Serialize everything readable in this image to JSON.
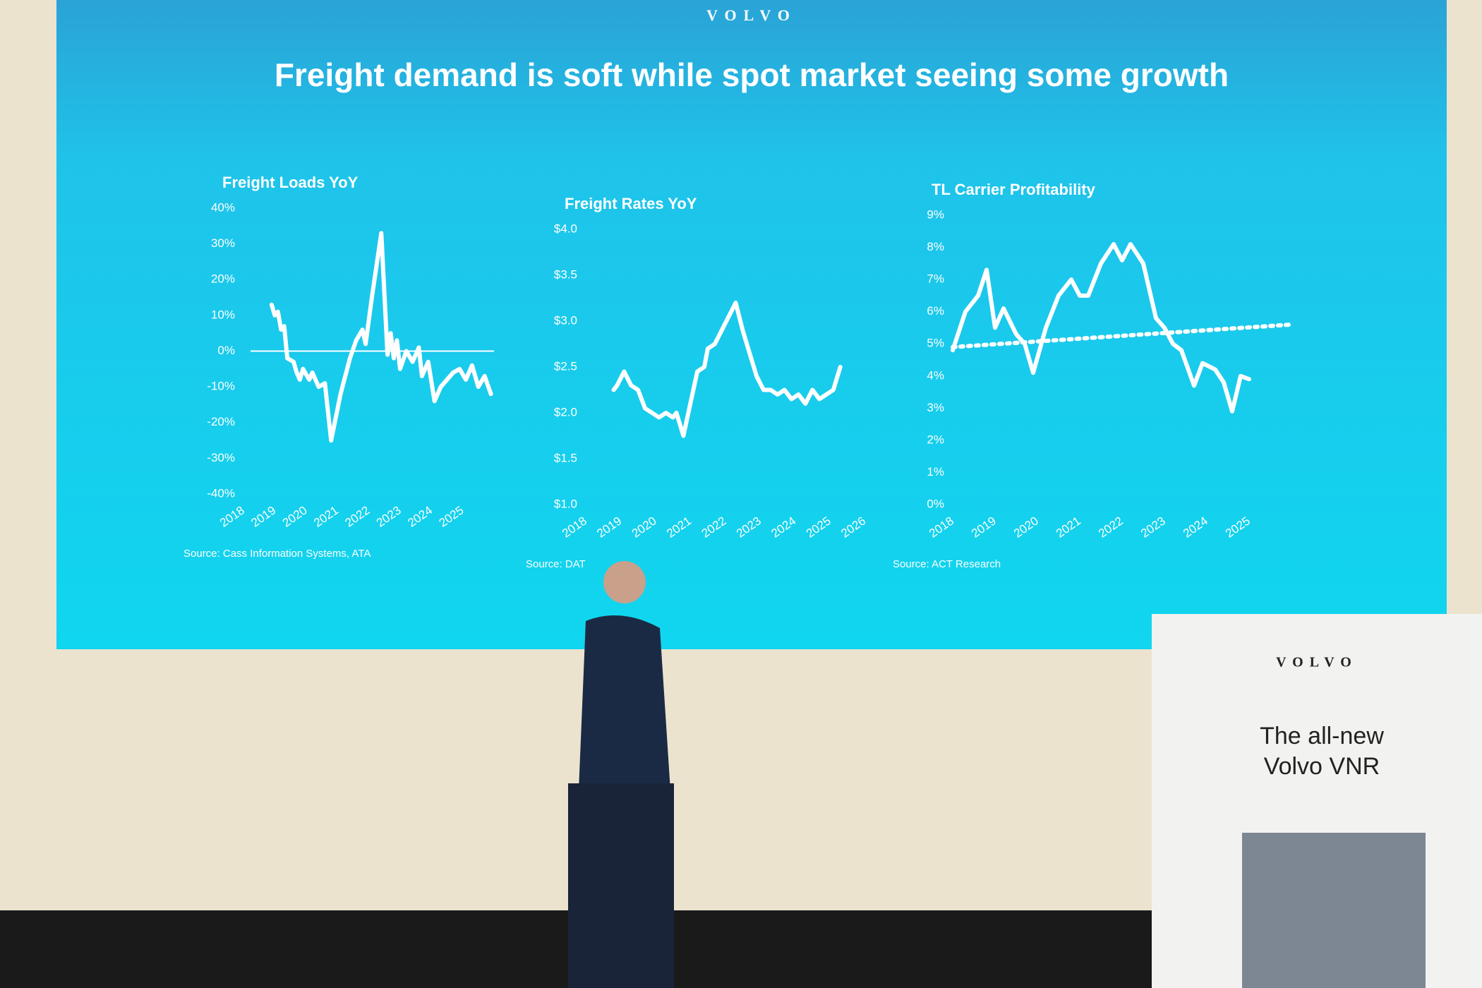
{
  "slide": {
    "brand": "VOLVO",
    "title": "Freight demand is soft while spot market seeing some growth"
  },
  "banner": {
    "brand": "VOLVO",
    "headline": [
      "The all-new",
      "Volvo VNR"
    ]
  },
  "chart_data": [
    {
      "type": "line",
      "title": "Freight Loads YoY",
      "source": "Source: Cass Information Systems, ATA",
      "color": "#ffffff",
      "xlim": [
        2018,
        2026
      ],
      "xticks": [
        2018,
        2019,
        2020,
        2021,
        2022,
        2023,
        2024,
        2025
      ],
      "ylim": [
        -40,
        40
      ],
      "yticks": [
        {
          "value": -40,
          "label": "-40%"
        },
        {
          "value": -30,
          "label": "-30%"
        },
        {
          "value": -20,
          "label": "-20%"
        },
        {
          "value": -10,
          "label": "-10%"
        },
        {
          "value": 0,
          "label": "0%"
        },
        {
          "value": 10,
          "label": "10%"
        },
        {
          "value": 20,
          "label": "20%"
        },
        {
          "value": 30,
          "label": "30%"
        },
        {
          "value": 40,
          "label": "40%"
        }
      ],
      "x": [
        2018.9,
        2019.0,
        2019.1,
        2019.2,
        2019.3,
        2019.4,
        2019.6,
        2019.7,
        2019.8,
        2019.9,
        2020.1,
        2020.2,
        2020.4,
        2020.6,
        2020.8,
        2021.1,
        2021.4,
        2021.6,
        2021.8,
        2021.9,
        2022.1,
        2022.4,
        2022.6,
        2022.7,
        2022.8,
        2022.9,
        2023.0,
        2023.2,
        2023.4,
        2023.6,
        2023.7,
        2023.9,
        2024.1,
        2024.3,
        2024.5,
        2024.7,
        2024.9,
        2025.1,
        2025.3,
        2025.5,
        2025.7,
        2025.9
      ],
      "series": [
        {
          "color": "#ffffff",
          "values": [
            13,
            10,
            11,
            6,
            7,
            -2,
            -3,
            -6,
            -8,
            -5,
            -8,
            -6,
            -10,
            -9,
            -25,
            -12,
            -2,
            3,
            6,
            2,
            15,
            33,
            -1,
            5,
            -2,
            3,
            -5,
            0,
            -3,
            1,
            -7,
            -3,
            -14,
            -10,
            -8,
            -6,
            -5,
            -8,
            -4,
            -10,
            -7,
            -12
          ]
        }
      ]
    },
    {
      "type": "line",
      "title": "Freight Rates YoY",
      "source": "Source: DAT",
      "color": "#ffffff",
      "xlim": [
        2018,
        2026.5
      ],
      "xticks": [
        2018,
        2019,
        2020,
        2021,
        2022,
        2023,
        2024,
        2025,
        2026
      ],
      "ylim": [
        1.0,
        4.0
      ],
      "yticks": [
        {
          "value": 1.0,
          "label": "$1.0"
        },
        {
          "value": 1.5,
          "label": "$1.5"
        },
        {
          "value": 2.0,
          "label": "$2.0"
        },
        {
          "value": 2.5,
          "label": "$2.5"
        },
        {
          "value": 3.0,
          "label": "$3.0"
        },
        {
          "value": 3.5,
          "label": "$3.5"
        },
        {
          "value": 4.0,
          "label": "$4.0"
        }
      ],
      "x": [
        2018.8,
        2018.9,
        2019.1,
        2019.3,
        2019.5,
        2019.7,
        2019.9,
        2020.1,
        2020.3,
        2020.5,
        2020.6,
        2020.8,
        2021.0,
        2021.2,
        2021.4,
        2021.5,
        2021.7,
        2021.9,
        2022.1,
        2022.3,
        2022.5,
        2022.7,
        2022.9,
        2023.1,
        2023.3,
        2023.5,
        2023.7,
        2023.9,
        2024.1,
        2024.3,
        2024.5,
        2024.7,
        2024.9,
        2025.1,
        2025.3
      ],
      "series": [
        {
          "color": "#ffffff",
          "values": [
            2.25,
            2.3,
            2.45,
            2.3,
            2.25,
            2.05,
            2.0,
            1.95,
            2.0,
            1.95,
            2.0,
            1.75,
            2.1,
            2.45,
            2.5,
            2.7,
            2.75,
            2.9,
            3.05,
            3.2,
            2.9,
            2.65,
            2.4,
            2.25,
            2.25,
            2.2,
            2.25,
            2.15,
            2.2,
            2.1,
            2.25,
            2.15,
            2.2,
            2.25,
            2.5
          ]
        }
      ]
    },
    {
      "type": "line",
      "title": "TL Carrier Profitability",
      "source": "Source: ACT Research",
      "color": "#ffffff",
      "xlim": [
        2018,
        2026
      ],
      "xticks": [
        2018,
        2019,
        2020,
        2021,
        2022,
        2023,
        2024,
        2025
      ],
      "ylim": [
        0,
        9
      ],
      "yticks": [
        {
          "value": 0,
          "label": "0%"
        },
        {
          "value": 1,
          "label": "1%"
        },
        {
          "value": 2,
          "label": "2%"
        },
        {
          "value": 3,
          "label": "3%"
        },
        {
          "value": 4,
          "label": "4%"
        },
        {
          "value": 5,
          "label": "5%"
        },
        {
          "value": 6,
          "label": "6%"
        },
        {
          "value": 7,
          "label": "7%"
        },
        {
          "value": 8,
          "label": "8%"
        },
        {
          "value": 9,
          "label": "9%"
        }
      ],
      "series": [
        {
          "color": "#ffffff",
          "dashed": false,
          "x": [
            2018.0,
            2018.3,
            2018.6,
            2018.8,
            2019.0,
            2019.2,
            2019.5,
            2019.7,
            2019.9,
            2020.2,
            2020.5,
            2020.8,
            2021.0,
            2021.2,
            2021.5,
            2021.8,
            2022.0,
            2022.2,
            2022.5,
            2022.8,
            2023.0,
            2023.2,
            2023.4,
            2023.7,
            2023.9,
            2024.2,
            2024.4,
            2024.6,
            2024.8,
            2025.0
          ],
          "values": [
            4.8,
            6.0,
            6.5,
            7.3,
            5.5,
            6.1,
            5.3,
            5.0,
            4.1,
            5.5,
            6.5,
            7.0,
            6.5,
            6.5,
            7.5,
            8.1,
            7.6,
            8.1,
            7.5,
            5.8,
            5.5,
            5.0,
            4.8,
            3.7,
            4.4,
            4.2,
            3.8,
            2.9,
            4.0,
            3.9
          ]
        },
        {
          "color": "#ffffff",
          "dashed": true,
          "x": [
            2018.0,
            2026.0
          ],
          "values": [
            4.9,
            5.6
          ]
        }
      ]
    }
  ]
}
